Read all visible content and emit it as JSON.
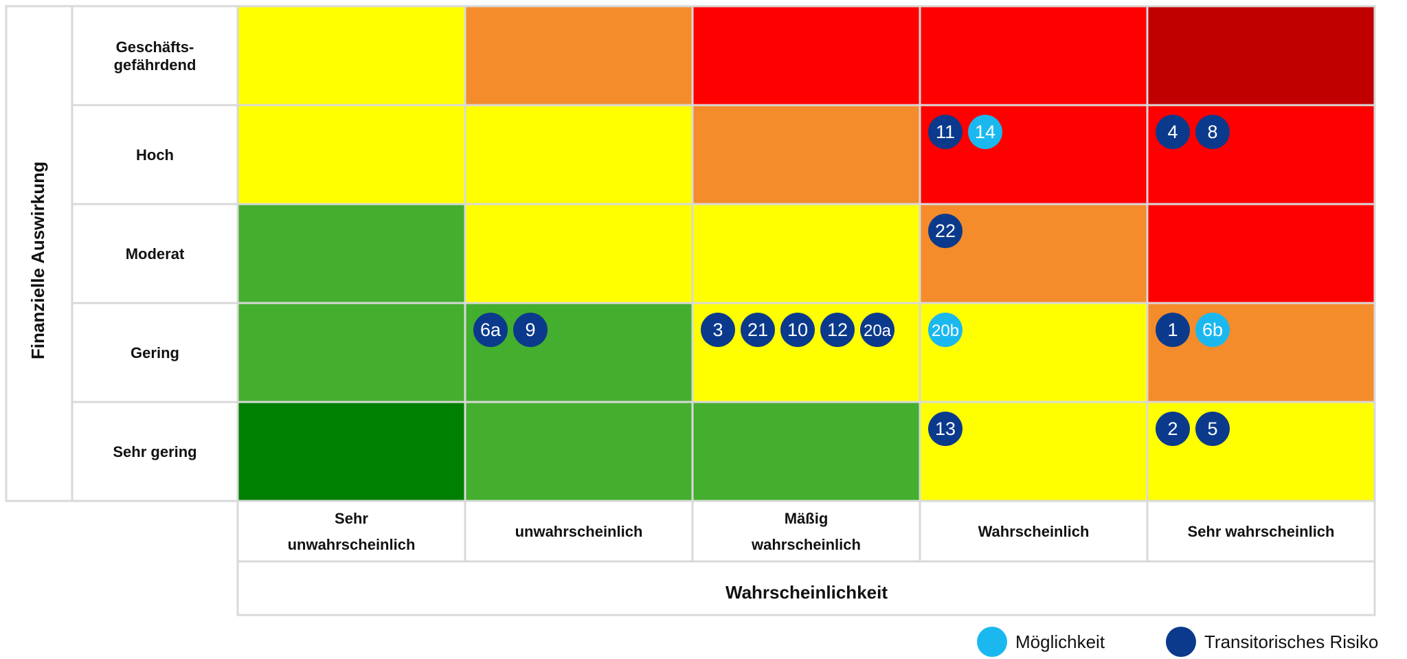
{
  "chart_data": {
    "type": "heatmap",
    "title": "",
    "xlabel": "Wahrscheinlichkeit",
    "ylabel": "Finanzielle Auswirkung",
    "x_categories": [
      [
        "Sehr",
        "unwahrscheinlich"
      ],
      [
        "unwahrscheinlich"
      ],
      [
        "Mäßig",
        "wahrscheinlich"
      ],
      [
        "Wahrscheinlich"
      ],
      [
        "Sehr wahrscheinlich"
      ]
    ],
    "y_categories": [
      [
        "Geschäfts-",
        "gefährdend"
      ],
      [
        "Hoch"
      ],
      [
        "Moderat"
      ],
      [
        "Gering"
      ],
      [
        "Sehr gering"
      ]
    ],
    "cell_colors": [
      [
        "#ffff00",
        "#f48c2c",
        "#ff0000",
        "#ff0000",
        "#c00000"
      ],
      [
        "#ffff00",
        "#ffff00",
        "#f48c2c",
        "#ff0000",
        "#ff0000"
      ],
      [
        "#44ae2e",
        "#ffff00",
        "#ffff00",
        "#f48c2c",
        "#ff0000"
      ],
      [
        "#44ae2e",
        "#44ae2e",
        "#ffff00",
        "#ffff00",
        "#f48c2c"
      ],
      [
        "#008000",
        "#44ae2e",
        "#44ae2e",
        "#ffff00",
        "#ffff00"
      ]
    ],
    "risks": [
      {
        "row": 1,
        "col": 3,
        "items": [
          {
            "id": "11",
            "type": "transitorisch"
          },
          {
            "id": "14",
            "type": "moeglichkeit"
          }
        ]
      },
      {
        "row": 1,
        "col": 4,
        "items": [
          {
            "id": "4",
            "type": "transitorisch"
          },
          {
            "id": "8",
            "type": "transitorisch"
          }
        ]
      },
      {
        "row": 2,
        "col": 3,
        "items": [
          {
            "id": "22",
            "type": "transitorisch"
          }
        ]
      },
      {
        "row": 3,
        "col": 1,
        "items": [
          {
            "id": "6a",
            "type": "transitorisch"
          },
          {
            "id": "9",
            "type": "transitorisch"
          }
        ]
      },
      {
        "row": 3,
        "col": 2,
        "items": [
          {
            "id": "3",
            "type": "transitorisch"
          },
          {
            "id": "21",
            "type": "transitorisch"
          },
          {
            "id": "10",
            "type": "transitorisch"
          },
          {
            "id": "12",
            "type": "transitorisch"
          },
          {
            "id": "20a",
            "type": "transitorisch"
          }
        ]
      },
      {
        "row": 3,
        "col": 3,
        "items": [
          {
            "id": "20b",
            "type": "moeglichkeit"
          }
        ]
      },
      {
        "row": 3,
        "col": 4,
        "items": [
          {
            "id": "1",
            "type": "transitorisch"
          },
          {
            "id": "6b",
            "type": "moeglichkeit"
          }
        ]
      },
      {
        "row": 4,
        "col": 3,
        "items": [
          {
            "id": "13",
            "type": "transitorisch"
          }
        ]
      },
      {
        "row": 4,
        "col": 4,
        "items": [
          {
            "id": "2",
            "type": "transitorisch"
          },
          {
            "id": "5",
            "type": "transitorisch"
          }
        ]
      }
    ],
    "legend": [
      {
        "type": "moeglichkeit",
        "label": "Möglichkeit",
        "color": "#1bb8f0"
      },
      {
        "type": "transitorisch",
        "label": "Transitorisches Risiko",
        "color": "#0b3a8c"
      }
    ],
    "legend_position": "bottom-right",
    "grid": true
  }
}
